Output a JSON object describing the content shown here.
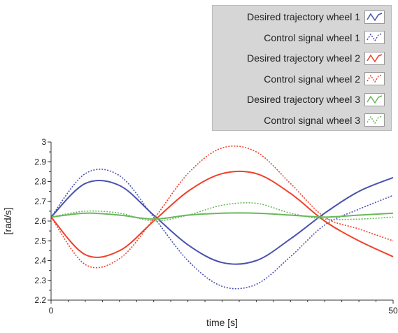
{
  "legend": {
    "items": [
      {
        "label": "Desired trajectory wheel 1",
        "color": "#4a52b0",
        "dashed": false
      },
      {
        "label": "Control signal wheel 1",
        "color": "#4a52b0",
        "dashed": true
      },
      {
        "label": "Desired trajectory wheel 2",
        "color": "#f0402a",
        "dashed": false
      },
      {
        "label": "Control signal wheel 2",
        "color": "#f0402a",
        "dashed": true
      },
      {
        "label": "Desired trajectory wheel 3",
        "color": "#6ab85a",
        "dashed": false
      },
      {
        "label": "Control signal wheel 3",
        "color": "#6ab85a",
        "dashed": true
      }
    ]
  },
  "chart_data": {
    "type": "line",
    "xlabel": "time [s]",
    "ylabel": "[rad/s]",
    "xlim": [
      0,
      50
    ],
    "ylim": [
      2.2,
      3
    ],
    "xticks": [
      "0",
      "50"
    ],
    "yticks": [
      "2.2",
      "2.3",
      "2.4",
      "2.5",
      "2.6",
      "2.7",
      "2.8",
      "2.9",
      "3"
    ],
    "grid": false,
    "legend_position": "top-right",
    "x": [
      0,
      5,
      10,
      15,
      20,
      25,
      30,
      35,
      40,
      45,
      50
    ],
    "series": [
      {
        "name": "Desired trajectory wheel 1",
        "color": "#4a52b0",
        "dashed": false,
        "values": [
          2.62,
          2.79,
          2.78,
          2.63,
          2.48,
          2.39,
          2.4,
          2.51,
          2.64,
          2.75,
          2.82
        ]
      },
      {
        "name": "Control signal wheel 1",
        "color": "#4a52b0",
        "dashed": true,
        "values": [
          2.62,
          2.84,
          2.83,
          2.62,
          2.4,
          2.27,
          2.28,
          2.42,
          2.58,
          2.66,
          2.73
        ]
      },
      {
        "name": "Desired trajectory wheel 2",
        "color": "#f0402a",
        "dashed": false,
        "values": [
          2.62,
          2.43,
          2.45,
          2.6,
          2.75,
          2.84,
          2.84,
          2.74,
          2.6,
          2.5,
          2.42
        ]
      },
      {
        "name": "Control signal wheel 2",
        "color": "#f0402a",
        "dashed": true,
        "values": [
          2.62,
          2.38,
          2.41,
          2.61,
          2.84,
          2.97,
          2.95,
          2.79,
          2.62,
          2.56,
          2.5
        ]
      },
      {
        "name": "Desired trajectory wheel 3",
        "color": "#6ab85a",
        "dashed": false,
        "values": [
          2.62,
          2.64,
          2.63,
          2.61,
          2.63,
          2.64,
          2.64,
          2.63,
          2.62,
          2.63,
          2.64
        ]
      },
      {
        "name": "Control signal wheel 3",
        "color": "#6ab85a",
        "dashed": true,
        "values": [
          2.62,
          2.65,
          2.64,
          2.6,
          2.63,
          2.68,
          2.69,
          2.64,
          2.61,
          2.61,
          2.62
        ]
      }
    ]
  }
}
